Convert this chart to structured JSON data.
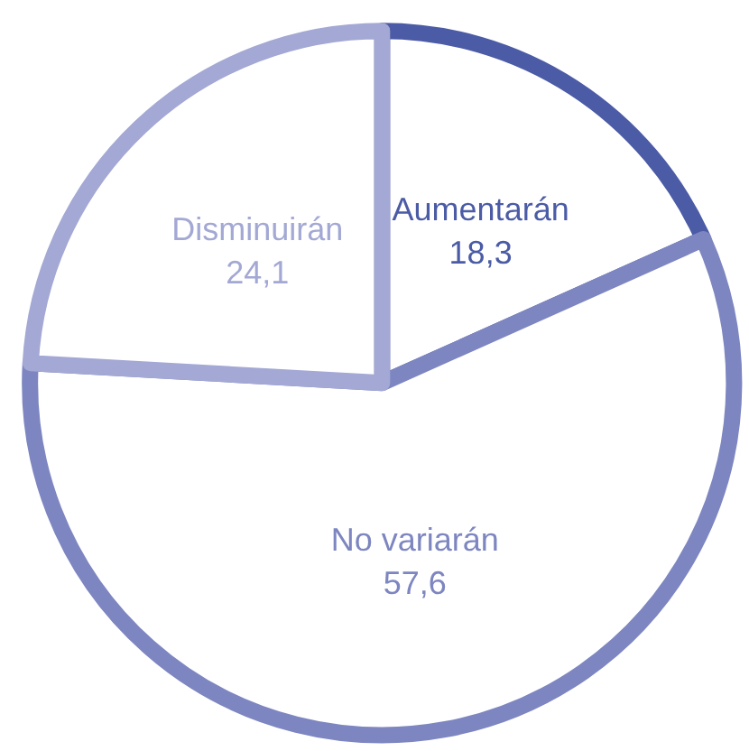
{
  "chart_data": {
    "type": "pie",
    "categories": [
      "Aumentarán",
      "No variarán",
      "Disminuirán"
    ],
    "values": [
      18.3,
      57.6,
      24.1
    ],
    "colors": [
      "#4b5ba5",
      "#7d86c0",
      "#a3a8d4"
    ],
    "value_labels": [
      "18,3",
      "57,6",
      "24,1"
    ],
    "legend": false
  }
}
